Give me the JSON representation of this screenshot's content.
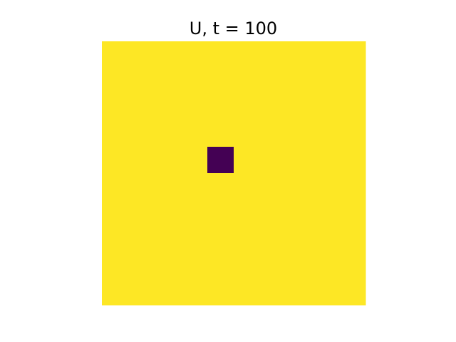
{
  "chart_data": {
    "type": "heatmap",
    "title": "U, t = 100",
    "xlabel": "",
    "ylabel": "",
    "axes": "off",
    "grid": false,
    "colormap": "viridis",
    "colors": {
      "low": "#440154",
      "high": "#fde725"
    },
    "grid_size": [
      10,
      10
    ],
    "background_value": 1,
    "cells": [
      {
        "row": 4,
        "col": 4,
        "value": 0
      }
    ]
  }
}
